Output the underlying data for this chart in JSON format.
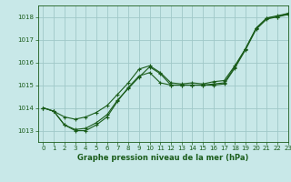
{
  "title": "Graphe pression niveau de la mer (hPa)",
  "bg_color": "#c8e8e8",
  "grid_color": "#a0c8c8",
  "line_color": "#1a5c1a",
  "xlim": [
    -0.5,
    23
  ],
  "ylim": [
    1012.5,
    1018.5
  ],
  "yticks": [
    1013,
    1014,
    1015,
    1016,
    1017,
    1018
  ],
  "xticks": [
    0,
    1,
    2,
    3,
    4,
    5,
    6,
    7,
    8,
    9,
    10,
    11,
    12,
    13,
    14,
    15,
    16,
    17,
    18,
    19,
    20,
    21,
    22,
    23
  ],
  "series": [
    {
      "x": [
        0,
        1,
        2,
        3,
        4,
        5,
        6,
        7,
        8,
        9,
        10,
        11,
        12,
        13,
        14,
        15,
        16,
        17,
        18,
        19,
        20,
        21,
        22,
        23
      ],
      "y": [
        1014.0,
        1013.85,
        1013.6,
        1013.5,
        1013.6,
        1013.8,
        1014.1,
        1014.6,
        1015.1,
        1015.7,
        1015.85,
        1015.55,
        1015.1,
        1015.05,
        1015.1,
        1015.05,
        1015.15,
        1015.2,
        1015.85,
        1016.6,
        1017.5,
        1017.95,
        1018.0,
        1018.15
      ]
    },
    {
      "x": [
        0,
        1,
        2,
        3,
        4,
        5,
        6,
        7,
        8,
        9,
        10,
        11,
        12,
        13,
        14,
        15,
        16,
        17,
        18,
        19,
        20,
        21,
        22,
        23
      ],
      "y": [
        1014.0,
        1013.85,
        1013.25,
        1013.05,
        1013.1,
        1013.35,
        1013.7,
        1014.35,
        1014.85,
        1015.35,
        1015.8,
        1015.5,
        1015.0,
        1015.0,
        1015.0,
        1015.0,
        1015.05,
        1015.1,
        1015.8,
        1016.6,
        1017.5,
        1017.95,
        1018.05,
        1018.15
      ]
    },
    {
      "x": [
        0,
        1,
        2,
        3,
        4,
        5,
        6,
        7,
        8,
        9,
        10,
        11,
        12,
        13,
        14,
        15,
        16,
        17,
        18,
        19,
        20,
        21,
        22,
        23
      ],
      "y": [
        1014.0,
        1013.85,
        1013.25,
        1013.0,
        1013.0,
        1013.25,
        1013.6,
        1014.3,
        1014.9,
        1015.4,
        1015.55,
        1015.1,
        1015.0,
        1015.0,
        1015.0,
        1015.0,
        1015.0,
        1015.05,
        1015.75,
        1016.55,
        1017.45,
        1017.9,
        1018.0,
        1018.1
      ]
    }
  ]
}
